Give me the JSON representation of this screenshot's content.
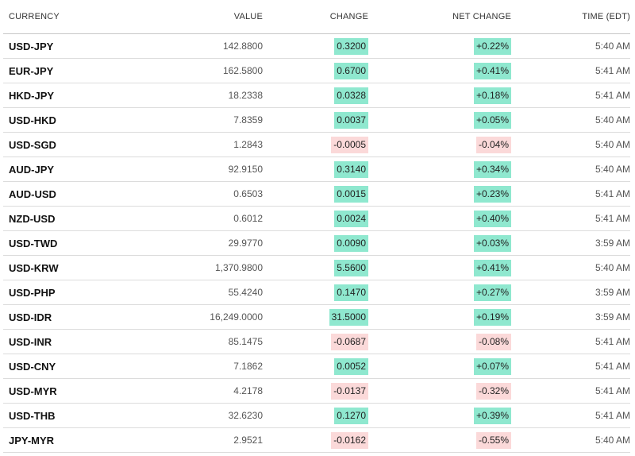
{
  "columns": {
    "currency": "CURRENCY",
    "value": "VALUE",
    "change": "CHANGE",
    "net_change": "NET CHANGE",
    "time": "TIME (EDT)"
  },
  "colors": {
    "positive": "#8fe8cf",
    "negative": "#fbd9d9"
  },
  "rows": [
    {
      "currency": "USD-JPY",
      "value": "142.8800",
      "change": "0.3200",
      "net_change": "+0.22%",
      "time": "5:40 AM",
      "direction": "pos"
    },
    {
      "currency": "EUR-JPY",
      "value": "162.5800",
      "change": "0.6700",
      "net_change": "+0.41%",
      "time": "5:41 AM",
      "direction": "pos"
    },
    {
      "currency": "HKD-JPY",
      "value": "18.2338",
      "change": "0.0328",
      "net_change": "+0.18%",
      "time": "5:41 AM",
      "direction": "pos"
    },
    {
      "currency": "USD-HKD",
      "value": "7.8359",
      "change": "0.0037",
      "net_change": "+0.05%",
      "time": "5:40 AM",
      "direction": "pos"
    },
    {
      "currency": "USD-SGD",
      "value": "1.2843",
      "change": "-0.0005",
      "net_change": "-0.04%",
      "time": "5:40 AM",
      "direction": "neg"
    },
    {
      "currency": "AUD-JPY",
      "value": "92.9150",
      "change": "0.3140",
      "net_change": "+0.34%",
      "time": "5:40 AM",
      "direction": "pos"
    },
    {
      "currency": "AUD-USD",
      "value": "0.6503",
      "change": "0.0015",
      "net_change": "+0.23%",
      "time": "5:41 AM",
      "direction": "pos"
    },
    {
      "currency": "NZD-USD",
      "value": "0.6012",
      "change": "0.0024",
      "net_change": "+0.40%",
      "time": "5:41 AM",
      "direction": "pos"
    },
    {
      "currency": "USD-TWD",
      "value": "29.9770",
      "change": "0.0090",
      "net_change": "+0.03%",
      "time": "3:59 AM",
      "direction": "pos"
    },
    {
      "currency": "USD-KRW",
      "value": "1,370.9800",
      "change": "5.5600",
      "net_change": "+0.41%",
      "time": "5:40 AM",
      "direction": "pos"
    },
    {
      "currency": "USD-PHP",
      "value": "55.4240",
      "change": "0.1470",
      "net_change": "+0.27%",
      "time": "3:59 AM",
      "direction": "pos"
    },
    {
      "currency": "USD-IDR",
      "value": "16,249.0000",
      "change": "31.5000",
      "net_change": "+0.19%",
      "time": "3:59 AM",
      "direction": "pos"
    },
    {
      "currency": "USD-INR",
      "value": "85.1475",
      "change": "-0.0687",
      "net_change": "-0.08%",
      "time": "5:41 AM",
      "direction": "neg"
    },
    {
      "currency": "USD-CNY",
      "value": "7.1862",
      "change": "0.0052",
      "net_change": "+0.07%",
      "time": "5:41 AM",
      "direction": "pos"
    },
    {
      "currency": "USD-MYR",
      "value": "4.2178",
      "change": "-0.0137",
      "net_change": "-0.32%",
      "time": "5:41 AM",
      "direction": "neg"
    },
    {
      "currency": "USD-THB",
      "value": "32.6230",
      "change": "0.1270",
      "net_change": "+0.39%",
      "time": "5:41 AM",
      "direction": "pos"
    },
    {
      "currency": "JPY-MYR",
      "value": "2.9521",
      "change": "-0.0162",
      "net_change": "-0.55%",
      "time": "5:40 AM",
      "direction": "neg"
    }
  ]
}
